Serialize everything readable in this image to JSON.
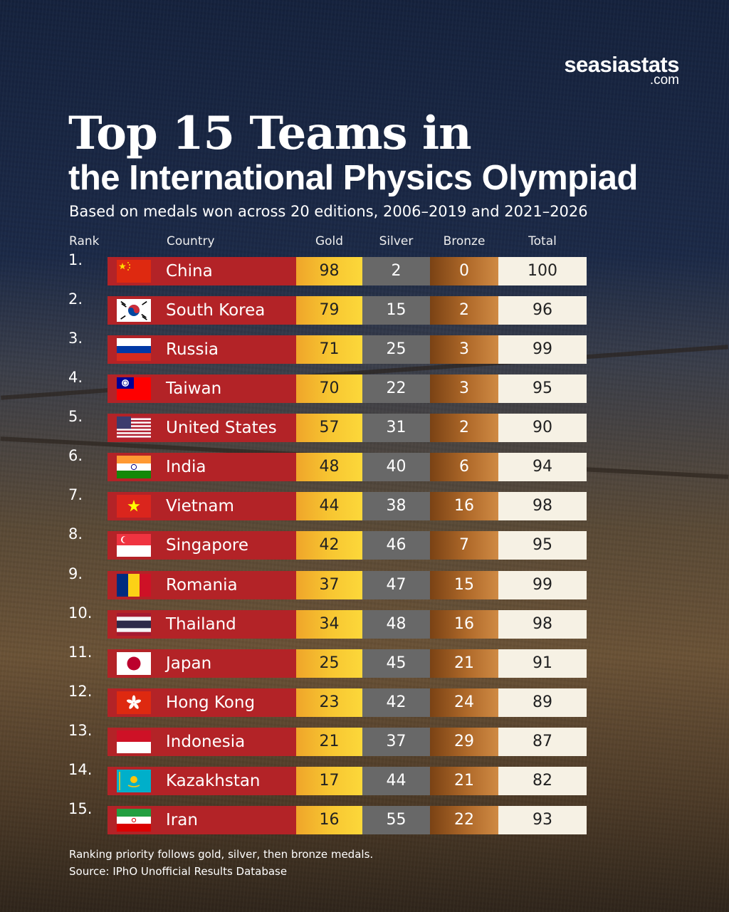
{
  "logo": {
    "main": "seasiastats",
    "sub": ".com"
  },
  "title_line1": "Top 15 Teams in",
  "title_line2": "the International Physics Olympiad",
  "subtitle": "Based on medals won across 20 editions, 2006–2019 and 2021–2026",
  "headers": {
    "rank": "Rank",
    "country": "Country",
    "gold": "Gold",
    "silver": "Silver",
    "bronze": "Bronze",
    "total": "Total"
  },
  "colors": {
    "country_bar": "#b32327",
    "gold": "#f7c531",
    "silver": "#686868",
    "bronze": "#b06a2a",
    "total": "#f6f1e4"
  },
  "chart_data": {
    "type": "table",
    "columns": [
      "Rank",
      "Country",
      "Gold",
      "Silver",
      "Bronze",
      "Total"
    ],
    "rows": [
      {
        "rank": "1.",
        "country": "China",
        "flag": "china-flag-icon",
        "gold": 98,
        "silver": 2,
        "bronze": 0,
        "total": 100
      },
      {
        "rank": "2.",
        "country": "South Korea",
        "flag": "south-korea-flag-icon",
        "gold": 79,
        "silver": 15,
        "bronze": 2,
        "total": 96
      },
      {
        "rank": "3.",
        "country": "Russia",
        "flag": "russia-flag-icon",
        "gold": 71,
        "silver": 25,
        "bronze": 3,
        "total": 99
      },
      {
        "rank": "4.",
        "country": "Taiwan",
        "flag": "taiwan-flag-icon",
        "gold": 70,
        "silver": 22,
        "bronze": 3,
        "total": 95
      },
      {
        "rank": "5.",
        "country": "United States",
        "flag": "united-states-flag-icon",
        "gold": 57,
        "silver": 31,
        "bronze": 2,
        "total": 90
      },
      {
        "rank": "6.",
        "country": "India",
        "flag": "india-flag-icon",
        "gold": 48,
        "silver": 40,
        "bronze": 6,
        "total": 94
      },
      {
        "rank": "7.",
        "country": "Vietnam",
        "flag": "vietnam-flag-icon",
        "gold": 44,
        "silver": 38,
        "bronze": 16,
        "total": 98
      },
      {
        "rank": "8.",
        "country": "Singapore",
        "flag": "singapore-flag-icon",
        "gold": 42,
        "silver": 46,
        "bronze": 7,
        "total": 95
      },
      {
        "rank": "9.",
        "country": "Romania",
        "flag": "romania-flag-icon",
        "gold": 37,
        "silver": 47,
        "bronze": 15,
        "total": 99
      },
      {
        "rank": "10.",
        "country": "Thailand",
        "flag": "thailand-flag-icon",
        "gold": 34,
        "silver": 48,
        "bronze": 16,
        "total": 98
      },
      {
        "rank": "11.",
        "country": "Japan",
        "flag": "japan-flag-icon",
        "gold": 25,
        "silver": 45,
        "bronze": 21,
        "total": 91
      },
      {
        "rank": "12.",
        "country": "Hong Kong",
        "flag": "hong-kong-flag-icon",
        "gold": 23,
        "silver": 42,
        "bronze": 24,
        "total": 89
      },
      {
        "rank": "13.",
        "country": "Indonesia",
        "flag": "indonesia-flag-icon",
        "gold": 21,
        "silver": 37,
        "bronze": 29,
        "total": 87
      },
      {
        "rank": "14.",
        "country": "Kazakhstan",
        "flag": "kazakhstan-flag-icon",
        "gold": 17,
        "silver": 44,
        "bronze": 21,
        "total": 82
      },
      {
        "rank": "15.",
        "country": "Iran",
        "flag": "iran-flag-icon",
        "gold": 16,
        "silver": 55,
        "bronze": 22,
        "total": 93
      }
    ]
  },
  "footnote": "Ranking priority follows gold, silver, then bronze medals.",
  "source": "Source: IPhO Unofficial Results Database"
}
